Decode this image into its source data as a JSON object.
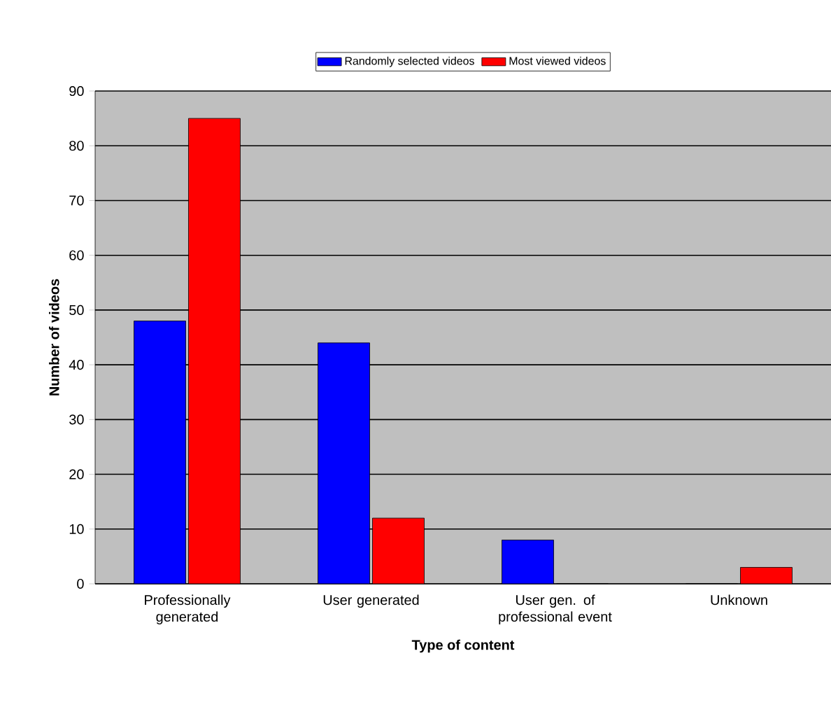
{
  "chart_data": {
    "type": "bar",
    "xlabel": "Type of content",
    "ylabel": "Number of videos",
    "categories": [
      "Professionally generated",
      "User generated",
      "User gen. of professional event",
      "Unknown"
    ],
    "series": [
      {
        "name": "Randomly selected videos",
        "color": "#0000ff",
        "values": [
          48,
          44,
          8,
          0
        ]
      },
      {
        "name": "Most viewed videos",
        "color": "#ff0000",
        "values": [
          85,
          12,
          0,
          3
        ]
      }
    ],
    "ylim": [
      0,
      90
    ],
    "yticks": [
      0,
      10,
      20,
      30,
      40,
      50,
      60,
      70,
      80,
      90
    ],
    "grid": "y",
    "legend": "top"
  }
}
